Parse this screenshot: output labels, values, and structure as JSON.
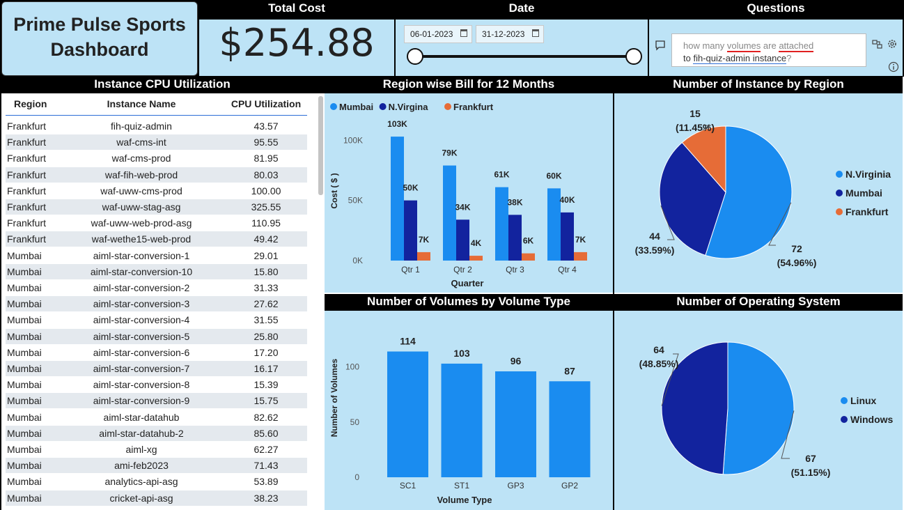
{
  "title": "Prime Pulse Sports Dashboard",
  "total_cost": {
    "header": "Total Cost",
    "value": "$254.88"
  },
  "date": {
    "header": "Date",
    "start": "06-01-2023",
    "end": "31-12-2023"
  },
  "questions": {
    "header": "Questions",
    "query_parts": [
      "how many ",
      "volumes",
      " are ",
      "attached",
      "to ",
      "fih-quiz-admin instance",
      "?"
    ]
  },
  "cpu_table": {
    "header": "Instance CPU Utilization",
    "columns": [
      "Region",
      "Instance Name",
      "CPU Utilization"
    ],
    "rows": [
      [
        "Frankfurt",
        "fih-quiz-admin",
        "43.57"
      ],
      [
        "Frankfurt",
        "waf-cms-int",
        "95.55"
      ],
      [
        "Frankfurt",
        "waf-cms-prod",
        "81.95"
      ],
      [
        "Frankfurt",
        "waf-fih-web-prod",
        "80.03"
      ],
      [
        "Frankfurt",
        "waf-uww-cms-prod",
        "100.00"
      ],
      [
        "Frankfurt",
        "waf-uww-stag-asg",
        "325.55"
      ],
      [
        "Frankfurt",
        "waf-uww-web-prod-asg",
        "110.95"
      ],
      [
        "Frankfurt",
        "waf-wethe15-web-prod",
        "49.42"
      ],
      [
        "Mumbai",
        "aiml-star-conversion-1",
        "29.01"
      ],
      [
        "Mumbai",
        "aiml-star-conversion-10",
        "15.80"
      ],
      [
        "Mumbai",
        "aiml-star-conversion-2",
        "31.33"
      ],
      [
        "Mumbai",
        "aiml-star-conversion-3",
        "27.62"
      ],
      [
        "Mumbai",
        "aiml-star-conversion-4",
        "31.55"
      ],
      [
        "Mumbai",
        "aiml-star-conversion-5",
        "25.80"
      ],
      [
        "Mumbai",
        "aiml-star-conversion-6",
        "17.20"
      ],
      [
        "Mumbai",
        "aiml-star-conversion-7",
        "16.17"
      ],
      [
        "Mumbai",
        "aiml-star-conversion-8",
        "15.39"
      ],
      [
        "Mumbai",
        "aiml-star-conversion-9",
        "15.75"
      ],
      [
        "Mumbai",
        "aiml-star-datahub",
        "82.62"
      ],
      [
        "Mumbai",
        "aiml-star-datahub-2",
        "85.60"
      ],
      [
        "Mumbai",
        "aiml-xg",
        "62.27"
      ],
      [
        "Mumbai",
        "ami-feb2023",
        "71.43"
      ],
      [
        "Mumbai",
        "analytics-api-asg",
        "53.89"
      ],
      [
        "Mumbai",
        "cricket-api-asg",
        "38.23"
      ]
    ]
  },
  "colors": {
    "mumbai": "#1a8cf0",
    "nvirginia": "#12239e",
    "frankfurt": "#e66c37",
    "bg": "#bde3f6",
    "header_bg": "#000000"
  },
  "chart_data": [
    {
      "type": "bar",
      "title": "Region wise Bill for 12 Months",
      "categories": [
        "Qtr 1",
        "Qtr 2",
        "Qtr 3",
        "Qtr 4"
      ],
      "series": [
        {
          "name": "Mumbai",
          "values": [
            103,
            79,
            61,
            60
          ],
          "labels": [
            "103K",
            "79K",
            "61K",
            "60K"
          ]
        },
        {
          "name": "N.Virgina",
          "values": [
            50,
            34,
            38,
            40
          ],
          "labels": [
            "50K",
            "34K",
            "38K",
            "40K"
          ]
        },
        {
          "name": "Frankfurt",
          "values": [
            7,
            4,
            6,
            7
          ],
          "labels": [
            "7K",
            "4K",
            "6K",
            "7K"
          ]
        }
      ],
      "xlabel": "Quarter",
      "ylabel": "Cost ( $ )",
      "yticks": [
        "0K",
        "50K",
        "100K"
      ],
      "ylim": [
        0,
        110
      ],
      "legend": "top-left"
    },
    {
      "type": "pie",
      "title": "Number of Instance by Region",
      "slices": [
        {
          "name": "N.Virginia",
          "value": 72,
          "pct": "(54.96%)"
        },
        {
          "name": "Mumbai",
          "value": 44,
          "pct": "(33.59%)"
        },
        {
          "name": "Frankfurt",
          "value": 15,
          "pct": "(11.45%)"
        }
      ],
      "legend": "right"
    },
    {
      "type": "bar",
      "title": "Number of Volumes by Volume Type",
      "categories": [
        "SC1",
        "ST1",
        "GP3",
        "GP2"
      ],
      "values": [
        114,
        103,
        96,
        87
      ],
      "xlabel": "Volume Type",
      "ylabel": "Number of Volumes",
      "yticks": [
        "0",
        "50",
        "100"
      ],
      "ylim": [
        0,
        120
      ]
    },
    {
      "type": "pie",
      "title": "Number of Operating System",
      "slices": [
        {
          "name": "Linux",
          "value": 67,
          "pct": "(51.15%)"
        },
        {
          "name": "Windows",
          "value": 64,
          "pct": "(48.85%)"
        }
      ],
      "legend": "right"
    }
  ]
}
